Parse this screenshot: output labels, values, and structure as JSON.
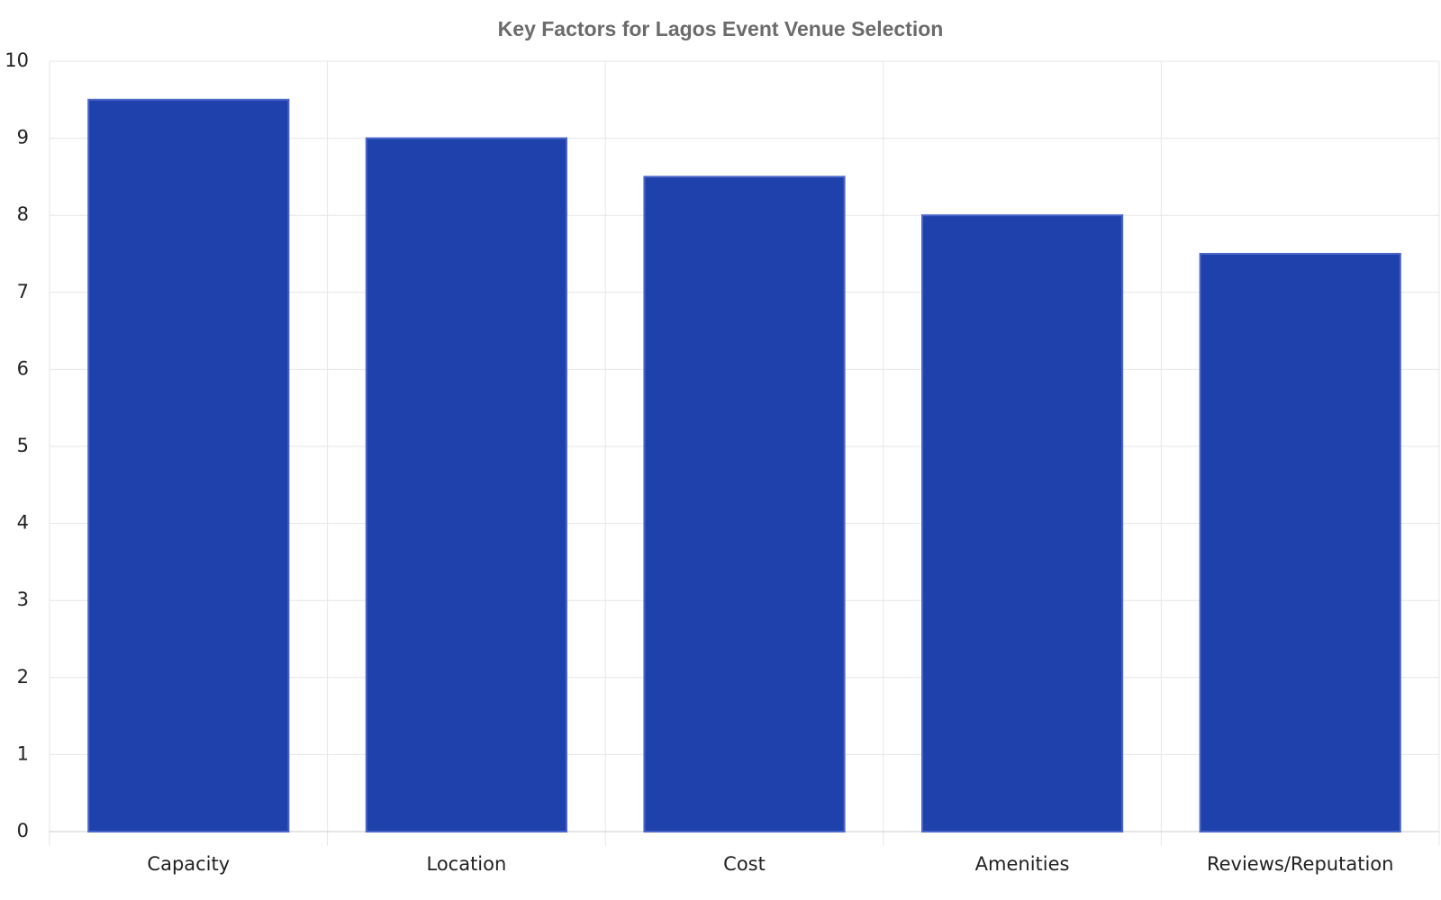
{
  "chart_data": {
    "type": "bar",
    "title": "Key Factors for Lagos Event Venue Selection",
    "categories": [
      "Capacity",
      "Location",
      "Cost",
      "Amenities",
      "Reviews/Reputation"
    ],
    "values": [
      9.5,
      9,
      8.5,
      8,
      7.5
    ],
    "color": "#1f41ab",
    "ylim": [
      0,
      10
    ],
    "yticks": [
      0,
      1,
      2,
      3,
      4,
      5,
      6,
      7,
      8,
      9,
      10
    ],
    "grid": true
  }
}
